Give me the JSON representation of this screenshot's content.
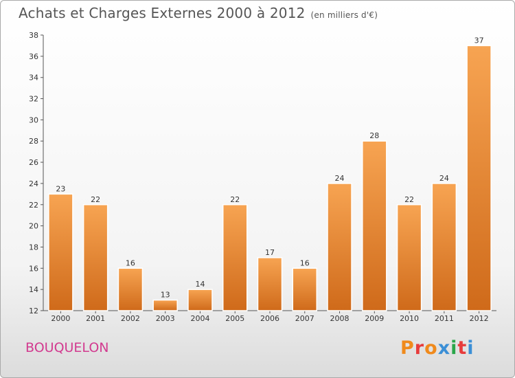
{
  "title": "Achats et Charges Externes 2000 à 2012",
  "unit": "(en milliers d'€)",
  "commune": "BOUQUELON",
  "logo": "Proxiti",
  "colors": {
    "bar_top": "#f7a452",
    "bar_bottom": "#cf6a1a",
    "commune": "#d23a8f",
    "logo": [
      "#f08a1c",
      "#e73c3c",
      "#f08a1c",
      "#3b8fd6",
      "#2aa64a",
      "#e73c3c",
      "#3b8fd6"
    ]
  },
  "chart_data": {
    "type": "bar",
    "title": "Achats et Charges Externes 2000 à 2012",
    "categories": [
      "2000",
      "2001",
      "2002",
      "2003",
      "2004",
      "2005",
      "2006",
      "2007",
      "2008",
      "2009",
      "2010",
      "2011",
      "2012"
    ],
    "values": [
      23,
      22,
      16,
      13,
      14,
      22,
      17,
      16,
      24,
      28,
      22,
      24,
      37
    ],
    "ylim": [
      12,
      38
    ],
    "yticks": [
      12,
      14,
      16,
      18,
      20,
      22,
      24,
      26,
      28,
      30,
      32,
      34,
      36,
      38
    ],
    "grid": false,
    "data_labels": true
  }
}
